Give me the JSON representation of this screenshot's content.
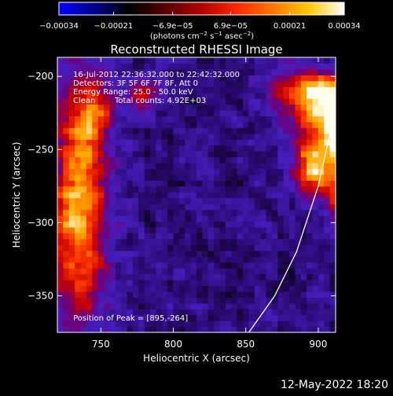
{
  "colorbar": {
    "ticks": [
      {
        "value": -0.00034,
        "label": "−0.00034"
      },
      {
        "value": -0.00021,
        "label": "−0.00021"
      },
      {
        "value": -6.9e-05,
        "label": "−6.9e−05"
      },
      {
        "value": 6.9e-05,
        "label": "6.9e−05"
      },
      {
        "value": 0.00021,
        "label": "0.00021"
      },
      {
        "value": 0.00034,
        "label": "0.00034"
      }
    ],
    "range": [
      -0.00034,
      0.00034
    ],
    "units": {
      "prefix": "(photons cm",
      "exp1": "−2",
      "mid1": " s",
      "exp2": "−1",
      "mid2": " asec",
      "exp3": "−2",
      "suffix": ")"
    },
    "colors": [
      "#0000ff",
      "#00008c",
      "#000000",
      "#5a0000",
      "#b40000",
      "#ff2800",
      "#ff7800",
      "#ffc800",
      "#ffffff"
    ]
  },
  "chart_data": {
    "type": "heatmap",
    "title": "Reconstructed RHESSI Image",
    "xlabel": "Heliocentric X (arcsec)",
    "ylabel": "Heliocentric Y (arcsec)",
    "xlim": [
      720,
      912
    ],
    "ylim": [
      -375,
      -187
    ],
    "xticks": [
      750,
      800,
      850,
      900
    ],
    "yticks": [
      -200,
      -250,
      -300,
      -350
    ],
    "annotations": [
      "16-Jul-2012 22:36:32.000 to 22:42:32.000",
      "Detectors: 3F 5F 6F 7F 8F, Att 0",
      "Energy Range: 25.0 - 50.0 keV",
      "Clean",
      "Total counts: 4.92E+03"
    ],
    "peak_label": "Position of Peak = [895,-264]",
    "peak": [
      895,
      -264
    ],
    "limb_curve": [
      [
        912,
        -222
      ],
      [
        900,
        -275
      ],
      [
        885,
        -320
      ],
      [
        870,
        -350
      ],
      [
        850,
        -378
      ]
    ]
  },
  "timestamp": "12-May-2022 18:20"
}
